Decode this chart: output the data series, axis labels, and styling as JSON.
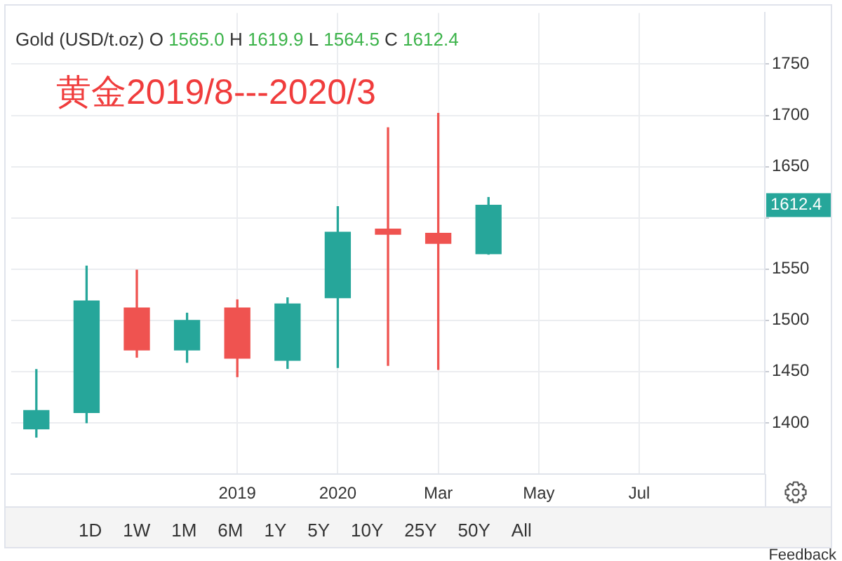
{
  "chart_data": {
    "type": "candlestick",
    "title": "Gold (USD/t.oz)",
    "subtitle": "黄金2019/8---2020/3",
    "annotations": [
      "O 1565.0 H 1619.9 L 1564.5 C 1612.4",
      "1612.4",
      "1D",
      "1W",
      "1M",
      "6M",
      "1Y",
      "5Y",
      "10Y",
      "25Y",
      "50Y",
      "All",
      "Feedback"
    ],
    "categories": [
      null,
      null,
      null,
      null,
      "2019",
      null,
      "2020",
      null,
      "Mar",
      null,
      "May",
      null,
      "Jul",
      null,
      null
    ],
    "ohlc": [
      [
        1394,
        1452,
        1386,
        1412
      ],
      [
        1410,
        1553,
        1400,
        1519
      ],
      [
        1512,
        1549,
        1464,
        1471
      ],
      [
        1471,
        1507,
        1459,
        1500
      ],
      [
        1512,
        1520,
        1445,
        1463
      ],
      [
        1461,
        1522,
        1453,
        1516
      ],
      [
        1522,
        1611,
        1454,
        1586
      ],
      [
        1589,
        1688,
        1456,
        1584
      ],
      [
        1585,
        1702,
        1452,
        1575
      ],
      [
        1565.0,
        1619.9,
        1564.5,
        1612.4
      ],
      null,
      null,
      null,
      null,
      null
    ],
    "colors": [
      "#26a69a",
      "#26a69a",
      "#ef5350",
      "#26a69a",
      "#ef5350",
      "#26a69a",
      "#26a69a",
      "#ef5350",
      "#ef5350",
      "#26a69a",
      null,
      null,
      null,
      null,
      null
    ],
    "ylim": [
      1350,
      1800
    ],
    "yticks": [
      1400,
      1450,
      1500,
      1550,
      {
        "value": 1600,
        "label": null
      },
      1650,
      1700,
      1750
    ],
    "grid": true
  }
}
